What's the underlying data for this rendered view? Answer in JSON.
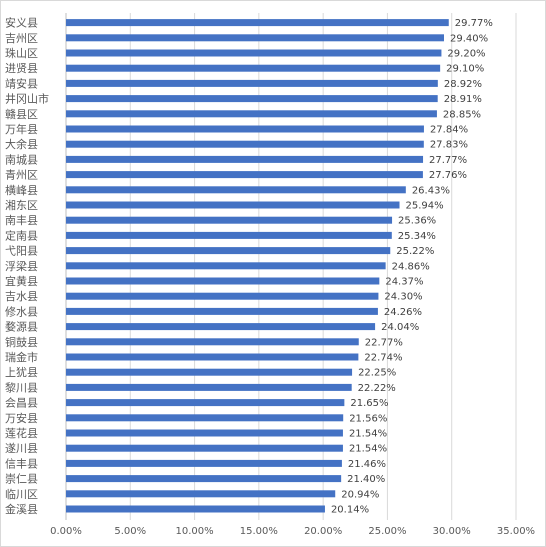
{
  "chart_data": {
    "type": "bar",
    "orientation": "horizontal",
    "bar_color": "#4472c4",
    "categories": [
      "安义县",
      "吉州区",
      "珠山区",
      "进贤县",
      "靖安县",
      "井冈山市",
      "赣县区",
      "万年县",
      "大余县",
      "南城县",
      "青州区",
      "横峰县",
      "湘东区",
      "南丰县",
      "定南县",
      "弋阳县",
      "浮梁县",
      "宜黄县",
      "吉水县",
      "修水县",
      "婺源县",
      "铜鼓县",
      "瑞金市",
      "上犹县",
      "黎川县",
      "会昌县",
      "万安县",
      "莲花县",
      "遂川县",
      "信丰县",
      "崇仁县",
      "临川区",
      "金溪县"
    ],
    "values": [
      29.77,
      29.4,
      29.2,
      29.1,
      28.92,
      28.91,
      28.85,
      27.84,
      27.83,
      27.77,
      27.76,
      26.43,
      25.94,
      25.36,
      25.34,
      25.22,
      24.86,
      24.37,
      24.3,
      24.26,
      24.04,
      22.77,
      22.74,
      22.25,
      22.22,
      21.65,
      21.56,
      21.54,
      21.54,
      21.46,
      21.4,
      20.94,
      20.14
    ],
    "value_labels": [
      "29.77%",
      "29.40%",
      "29.20%",
      "29.10%",
      "28.92%",
      "28.91%",
      "28.85%",
      "27.84%",
      "27.83%",
      "27.77%",
      "27.76%",
      "26.43%",
      "25.94%",
      "25.36%",
      "25.34%",
      "25.22%",
      "24.86%",
      "24.37%",
      "24.30%",
      "24.26%",
      "24.04%",
      "22.77%",
      "22.74%",
      "22.25%",
      "22.22%",
      "21.65%",
      "21.56%",
      "21.54%",
      "21.54%",
      "21.46%",
      "21.40%",
      "20.94%",
      "20.14%"
    ],
    "xlim": [
      0,
      35
    ],
    "x_ticks": [
      0,
      5,
      10,
      15,
      20,
      25,
      30,
      35
    ],
    "x_tick_labels": [
      "0.00%",
      "5.00%",
      "10.00%",
      "15.00%",
      "20.00%",
      "25.00%",
      "30.00%",
      "35.00%"
    ],
    "grid": "vertical",
    "legend": "none"
  }
}
